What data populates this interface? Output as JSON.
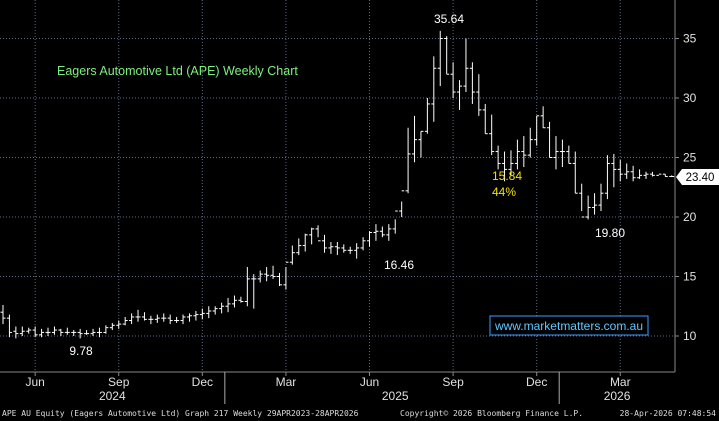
{
  "chart_data": {
    "type": "bar",
    "style": "ohlc",
    "title": "Eagers Automotive Ltd (APE) Weekly Chart",
    "watermark": "www.marketmatters.com.au",
    "ylim": [
      8,
      37
    ],
    "y_ticks": [
      "10",
      "15",
      "20",
      "25",
      "30",
      "35"
    ],
    "x_ticks": [
      "Jun",
      "Sep",
      "Dec",
      "Mar",
      "Jun",
      "Sep",
      "Dec",
      "Mar"
    ],
    "years": [
      "2024",
      "2025",
      "2026"
    ],
    "last_price": "23.40",
    "grid": true,
    "annotations": [
      {
        "text": "35.64",
        "color": "#ffffff"
      },
      {
        "text": "15.84",
        "color": "#f0e000"
      },
      {
        "text": "44%",
        "color": "#f0e000"
      },
      {
        "text": "16.46",
        "color": "#ffffff"
      },
      {
        "text": "19.80",
        "color": "#ffffff"
      },
      {
        "text": "9.78",
        "color": "#ffffff"
      }
    ],
    "x": [
      "2024-04-29",
      "2024-05-06",
      "2024-05-13",
      "2024-05-20",
      "2024-05-27",
      "2024-06-03",
      "2024-06-10",
      "2024-06-17",
      "2024-06-24",
      "2024-07-01",
      "2024-07-08",
      "2024-07-15",
      "2024-07-22",
      "2024-07-29",
      "2024-08-05",
      "2024-08-12",
      "2024-08-19",
      "2024-08-26",
      "2024-09-02",
      "2024-09-09",
      "2024-09-16",
      "2024-09-23",
      "2024-09-30",
      "2024-10-07",
      "2024-10-14",
      "2024-10-21",
      "2024-10-28",
      "2024-11-04",
      "2024-11-11",
      "2024-11-18",
      "2024-11-25",
      "2024-12-02",
      "2024-12-09",
      "2024-12-16",
      "2024-12-23",
      "2024-12-30",
      "2025-01-06",
      "2025-01-13",
      "2025-01-20",
      "2025-01-27",
      "2025-02-03",
      "2025-02-10",
      "2025-02-17",
      "2025-02-24",
      "2025-03-03",
      "2025-03-10",
      "2025-03-17",
      "2025-03-24",
      "2025-03-31",
      "2025-04-07",
      "2025-04-14",
      "2025-04-21",
      "2025-04-28",
      "2025-05-05",
      "2025-05-12",
      "2025-05-19",
      "2025-05-26",
      "2025-06-02",
      "2025-06-09",
      "2025-06-16",
      "2025-06-23",
      "2025-06-30",
      "2025-07-07",
      "2025-07-14",
      "2025-07-21",
      "2025-07-28",
      "2025-08-04",
      "2025-08-11",
      "2025-08-18",
      "2025-08-25",
      "2025-09-01",
      "2025-09-08",
      "2025-09-15",
      "2025-09-22",
      "2025-09-29",
      "2025-10-06",
      "2025-10-13",
      "2025-10-20",
      "2025-10-27",
      "2025-11-03",
      "2025-11-10",
      "2025-11-17",
      "2025-11-24",
      "2025-12-01",
      "2025-12-08",
      "2025-12-15",
      "2025-12-22",
      "2025-12-29",
      "2026-01-05",
      "2026-01-12",
      "2026-01-19",
      "2026-01-26",
      "2026-02-02",
      "2026-02-09",
      "2026-02-16",
      "2026-02-23",
      "2026-03-02",
      "2026-03-09",
      "2026-03-16",
      "2026-03-23",
      "2026-03-30",
      "2026-04-06",
      "2026-04-13",
      "2026-04-20",
      "2026-04-27"
    ],
    "series": [
      {
        "low": [
          11.0,
          9.9,
          9.8,
          10.0,
          10.2,
          9.9,
          9.9,
          10.0,
          10.1,
          10.0,
          10.1,
          10.0,
          9.8,
          10.1,
          10.0,
          9.9,
          10.2,
          10.5,
          10.6,
          10.9,
          11.0,
          11.2,
          11.3,
          11.0,
          11.1,
          11.2,
          11.0,
          11.1,
          11.0,
          11.2,
          11.3,
          11.4,
          11.5,
          11.8,
          11.9,
          12.0,
          12.4,
          12.8,
          12.5,
          12.3,
          14.5,
          14.6,
          14.8,
          14.2,
          13.9,
          16.0,
          16.8,
          17.1,
          17.7,
          18.3,
          17.0,
          16.9,
          16.8,
          17.0,
          16.9,
          16.5,
          17.2,
          17.5,
          18.0,
          18.3,
          18.0,
          18.6,
          20.0,
          22.0,
          24.6,
          25.0,
          27.0,
          28.0,
          31.0,
          32.0,
          30.0,
          29.0,
          30.5,
          29.5,
          28.5,
          27.0,
          25.2,
          24.0,
          23.0,
          23.5,
          24.0,
          24.2,
          25.0,
          26.0,
          27.5,
          25.0,
          24.0,
          24.2,
          24.5,
          22.0,
          20.5,
          19.8,
          20.2,
          20.5,
          21.5,
          22.5,
          23.0,
          23.2,
          23.0,
          23.2,
          23.2,
          23.4,
          23.6,
          23.4,
          23.4
        ]
      },
      {
        "high": [
          12.6,
          11.8,
          10.8,
          10.8,
          10.7,
          10.8,
          10.6,
          10.7,
          10.8,
          10.6,
          10.7,
          10.5,
          10.6,
          10.5,
          10.6,
          10.7,
          10.9,
          11.1,
          11.3,
          11.6,
          11.9,
          12.2,
          12.0,
          11.7,
          11.8,
          11.9,
          11.8,
          11.6,
          11.8,
          11.9,
          12.1,
          12.3,
          12.5,
          12.5,
          12.8,
          13.2,
          13.4,
          13.3,
          15.8,
          15.2,
          15.5,
          15.8,
          15.9,
          15.3,
          15.8,
          17.6,
          18.2,
          18.6,
          19.1,
          19.3,
          18.5,
          17.9,
          17.9,
          17.7,
          17.5,
          17.8,
          18.3,
          18.8,
          19.4,
          19.2,
          19.4,
          19.8,
          21.3,
          27.5,
          28.5,
          27.2,
          30.0,
          33.5,
          35.64,
          35.2,
          33.0,
          31.5,
          35.0,
          33.0,
          32.0,
          29.5,
          28.6,
          26.0,
          25.5,
          25.6,
          26.5,
          26.8,
          27.5,
          28.5,
          29.3,
          28.0,
          26.8,
          26.5,
          26.0,
          25.5,
          22.8,
          21.8,
          22.0,
          22.8,
          25.2,
          25.3,
          24.8,
          24.5,
          24.3,
          24.0,
          23.8,
          23.8,
          23.6,
          23.6,
          23.5
        ]
      },
      {
        "open": [
          12.0,
          11.5,
          10.4,
          10.2,
          10.4,
          10.5,
          10.1,
          10.3,
          10.3,
          10.5,
          10.3,
          10.3,
          10.3,
          10.2,
          10.2,
          10.3,
          10.3,
          10.7,
          10.9,
          11.0,
          11.3,
          11.6,
          11.6,
          11.4,
          11.4,
          11.5,
          11.5,
          11.3,
          11.3,
          11.6,
          11.7,
          11.8,
          11.9,
          12.1,
          12.3,
          12.5,
          12.7,
          13.0,
          12.9,
          14.8,
          14.8,
          15.2,
          15.1,
          15.0,
          14.3,
          16.2,
          17.0,
          17.6,
          18.5,
          19.0,
          18.0,
          17.4,
          17.5,
          17.4,
          17.2,
          17.2,
          17.4,
          18.0,
          18.7,
          18.8,
          18.5,
          19.0,
          20.5,
          22.2,
          25.3,
          26.5,
          27.2,
          29.5,
          32.5,
          35.0,
          32.0,
          30.5,
          31.0,
          32.5,
          30.5,
          29.0,
          27.0,
          25.5,
          24.5,
          24.0,
          24.5,
          25.5,
          25.2,
          26.5,
          28.5,
          27.5,
          25.0,
          25.5,
          25.5,
          24.5,
          22.0,
          20.0,
          20.8,
          21.0,
          22.0,
          24.5,
          24.0,
          23.6,
          23.8,
          23.3,
          23.5,
          23.6,
          23.5,
          23.6,
          23.4
        ]
      },
      {
        "close": [
          11.5,
          10.3,
          10.2,
          10.4,
          10.5,
          10.1,
          10.3,
          10.3,
          10.5,
          10.3,
          10.3,
          10.3,
          10.2,
          10.2,
          10.3,
          10.3,
          10.7,
          10.9,
          11.0,
          11.3,
          11.6,
          11.6,
          11.4,
          11.4,
          11.5,
          11.5,
          11.3,
          11.3,
          11.6,
          11.7,
          11.8,
          11.9,
          12.1,
          12.3,
          12.5,
          12.7,
          13.0,
          12.9,
          14.8,
          14.8,
          15.2,
          15.1,
          15.0,
          14.3,
          16.2,
          17.0,
          17.6,
          18.5,
          19.0,
          18.0,
          17.4,
          17.5,
          17.4,
          17.2,
          17.2,
          17.4,
          18.0,
          18.7,
          18.8,
          18.5,
          19.0,
          20.5,
          22.2,
          25.3,
          26.5,
          27.2,
          29.5,
          32.5,
          35.0,
          32.0,
          30.5,
          31.0,
          32.5,
          30.5,
          29.0,
          27.0,
          25.5,
          24.5,
          24.0,
          24.5,
          25.5,
          25.2,
          26.5,
          28.5,
          27.5,
          25.0,
          25.5,
          25.5,
          24.5,
          22.0,
          20.0,
          20.8,
          21.0,
          22.0,
          24.5,
          24.0,
          23.6,
          23.8,
          23.3,
          23.5,
          23.6,
          23.5,
          23.6,
          23.4,
          23.4
        ]
      }
    ]
  },
  "footer": {
    "left": "APE AU Equity (Eagers Automotive Ltd) Graph 217 Weekly 29APR2023-28APR2026",
    "center": "Copyright© 2026 Bloomberg Finance L.P.",
    "right": "28-Apr-2026 07:48:54"
  }
}
